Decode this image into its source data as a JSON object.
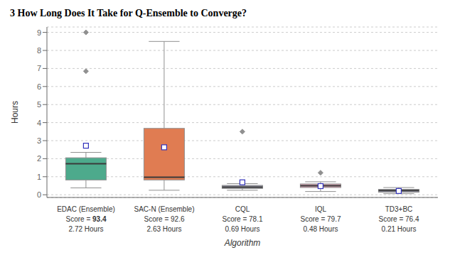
{
  "chart_data": {
    "type": "box",
    "title": "3   How Long Does It Take for Q-Ensemble to Converge?",
    "xlabel": "Algorithm",
    "ylabel": "Hours",
    "categories": [
      "EDAC (Ensemble)",
      "SAC-N (Ensemble)",
      "CQL",
      "IQL",
      "TD3+BC"
    ],
    "q1": [
      0.82,
      0.82,
      0.35,
      0.4,
      0.14
    ],
    "median": [
      1.72,
      0.97,
      0.42,
      0.5,
      0.23
    ],
    "q3": [
      2.05,
      3.68,
      0.52,
      0.6,
      0.3
    ],
    "whisker_low": [
      0.38,
      0.25,
      0.25,
      0.18,
      0.06
    ],
    "whisker_high": [
      2.35,
      8.5,
      0.62,
      0.72,
      0.4
    ],
    "mean": [
      2.72,
      2.63,
      0.69,
      0.48,
      0.21
    ],
    "fliers": [
      [
        6.85,
        9.0
      ],
      [],
      [
        3.5
      ],
      [
        1.22
      ],
      []
    ],
    "colors": [
      "#4daa8c",
      "#e07c52",
      "#9898a8",
      "#d4a0b0",
      "#9898a8"
    ],
    "whisker_color": "#909090",
    "flier_color": "#909090",
    "mean_color": "#3333bb",
    "median_color": "#3a3a3a",
    "ylim": [
      -0.15,
      9.3
    ],
    "yticks": [
      0,
      1,
      2,
      3,
      4,
      5,
      6,
      7,
      8,
      9
    ],
    "grid": true,
    "score_prefix": "Score = ",
    "scores": [
      "93.4",
      "92.6",
      "78.1",
      "79.7",
      "76.4"
    ],
    "hour_labels": [
      "2.72 Hours",
      "2.63 Hours",
      "0.69 Hours",
      "0.48 Hours",
      "0.21 Hours"
    ]
  }
}
